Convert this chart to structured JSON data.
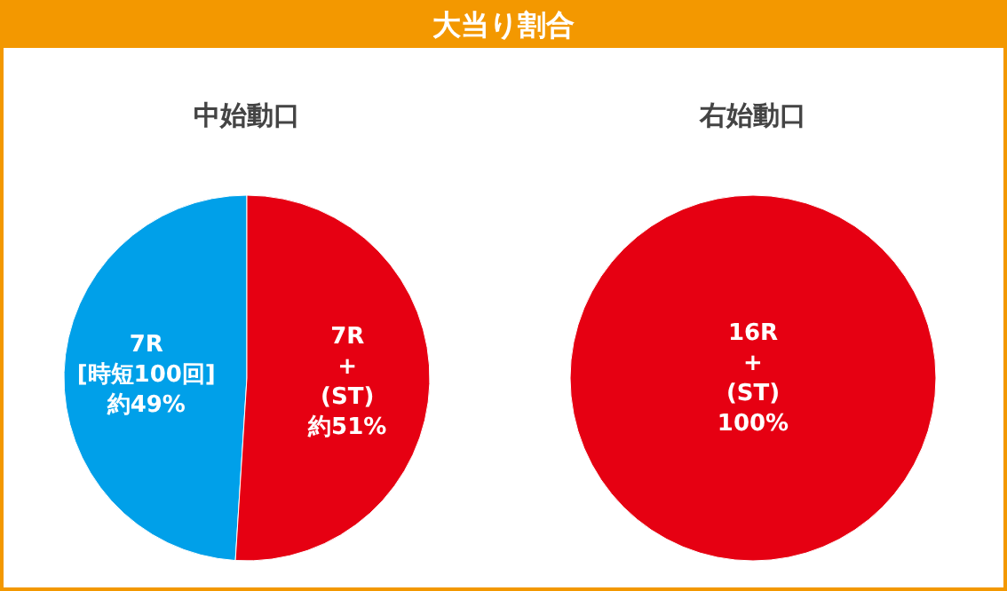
{
  "chart_data": [
    {
      "type": "pie",
      "title": "大当り割合",
      "subtitle": "中始動口",
      "categories": [
        "7R [時短100回]",
        "7R + (ST)"
      ],
      "values": [
        49,
        51
      ],
      "colors": [
        "#00a0e9",
        "#e60012"
      ],
      "value_labels": [
        "約49%",
        "約51%"
      ]
    },
    {
      "type": "pie",
      "title": "右始動口",
      "categories": [
        "16R + (ST)"
      ],
      "values": [
        100
      ],
      "colors": [
        "#e60012"
      ],
      "value_labels": [
        "100%"
      ]
    }
  ]
}
